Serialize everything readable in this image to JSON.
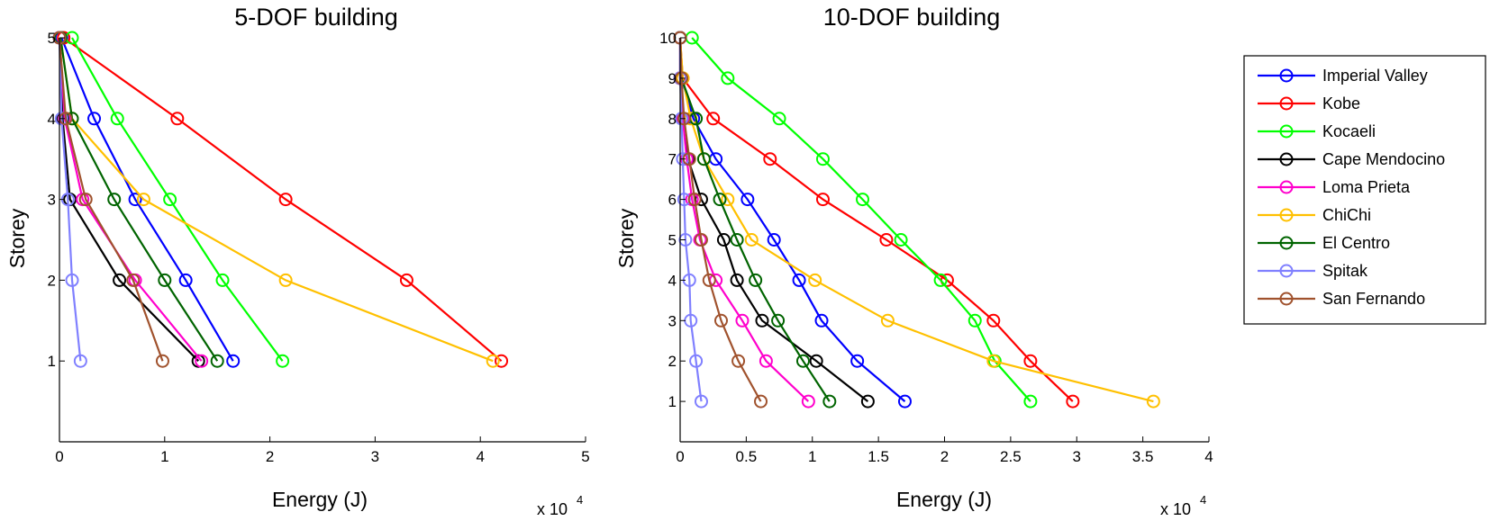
{
  "chart_data": [
    {
      "type": "line",
      "title": "5-DOF building",
      "xlabel": "Energy (J)",
      "ylabel": "Storey",
      "x_scale_label": "x 10",
      "x_scale_exponent": "4",
      "xlim": [
        0,
        5
      ],
      "ylim": [
        0,
        5
      ],
      "xticks": [
        "0",
        "1",
        "2",
        "3",
        "4",
        "5"
      ],
      "yticks": [
        "1",
        "2",
        "3",
        "4",
        "5"
      ],
      "x_unit_multiplier": 10000,
      "y": [
        1,
        2,
        3,
        4,
        5
      ],
      "series": [
        {
          "name": "Imperial Valley",
          "color": "#0000ff",
          "x": [
            1.65,
            1.2,
            0.72,
            0.33,
            0.02
          ]
        },
        {
          "name": "Kobe",
          "color": "#ff0000",
          "x": [
            4.2,
            3.3,
            2.15,
            1.12,
            0.04
          ]
        },
        {
          "name": "Kocaeli",
          "color": "#00ff00",
          "x": [
            2.12,
            1.55,
            1.05,
            0.55,
            0.12
          ]
        },
        {
          "name": "Cape Mendocino",
          "color": "#000000",
          "x": [
            1.32,
            0.57,
            0.1,
            0.03,
            0.0
          ]
        },
        {
          "name": "Loma Prieta",
          "color": "#ff00cc",
          "x": [
            1.35,
            0.72,
            0.22,
            0.05,
            0.0
          ]
        },
        {
          "name": "ChiChi",
          "color": "#ffc000",
          "x": [
            4.12,
            2.15,
            0.8,
            0.12,
            0.01
          ]
        },
        {
          "name": "El Centro",
          "color": "#006400",
          "x": [
            1.5,
            1.0,
            0.52,
            0.12,
            0.01
          ]
        },
        {
          "name": "Spitak",
          "color": "#8080ff",
          "x": [
            0.2,
            0.12,
            0.08,
            0.02,
            0.0
          ]
        },
        {
          "name": "San Fernando",
          "color": "#a0522d",
          "x": [
            0.98,
            0.7,
            0.25,
            0.06,
            0.0
          ]
        }
      ]
    },
    {
      "type": "line",
      "title": "10-DOF building",
      "xlabel": "Energy (J)",
      "ylabel": "Storey",
      "x_scale_label": "x 10",
      "x_scale_exponent": "4",
      "xlim": [
        0,
        4
      ],
      "ylim": [
        0,
        10
      ],
      "xticks": [
        "0",
        "0.5",
        "1",
        "1.5",
        "2",
        "2.5",
        "3",
        "3.5",
        "4"
      ],
      "yticks": [
        "1",
        "2",
        "3",
        "4",
        "5",
        "6",
        "7",
        "8",
        "9",
        "10"
      ],
      "x_unit_multiplier": 10000,
      "y": [
        1,
        2,
        3,
        4,
        5,
        6,
        7,
        8,
        9,
        10
      ],
      "series": [
        {
          "name": "Imperial Valley",
          "color": "#0000ff",
          "x": [
            1.7,
            1.34,
            1.07,
            0.9,
            0.71,
            0.51,
            0.27,
            0.1,
            0.01,
            0.0
          ]
        },
        {
          "name": "Kobe",
          "color": "#ff0000",
          "x": [
            2.97,
            2.65,
            2.37,
            2.02,
            1.56,
            1.08,
            0.68,
            0.25,
            0.02,
            0.0
          ]
        },
        {
          "name": "Kocaeli",
          "color": "#00ff00",
          "x": [
            2.65,
            2.38,
            2.23,
            1.97,
            1.67,
            1.38,
            1.08,
            0.75,
            0.36,
            0.09
          ]
        },
        {
          "name": "Cape Mendocino",
          "color": "#000000",
          "x": [
            1.42,
            1.03,
            0.62,
            0.43,
            0.33,
            0.16,
            0.06,
            0.02,
            0.0,
            0.0
          ]
        },
        {
          "name": "Loma Prieta",
          "color": "#ff00cc",
          "x": [
            0.97,
            0.65,
            0.47,
            0.27,
            0.15,
            0.09,
            0.05,
            0.02,
            0.0,
            0.0
          ]
        },
        {
          "name": "ChiChi",
          "color": "#ffc000",
          "x": [
            3.58,
            2.37,
            1.57,
            1.02,
            0.54,
            0.36,
            0.18,
            0.08,
            0.02,
            0.0
          ]
        },
        {
          "name": "El Centro",
          "color": "#006400",
          "x": [
            1.13,
            0.93,
            0.74,
            0.57,
            0.43,
            0.3,
            0.18,
            0.12,
            0.01,
            0.0
          ]
        },
        {
          "name": "Spitak",
          "color": "#8080ff",
          "x": [
            0.16,
            0.12,
            0.08,
            0.07,
            0.04,
            0.03,
            0.02,
            0.01,
            0.0,
            0.0
          ]
        },
        {
          "name": "San Fernando",
          "color": "#a0522d",
          "x": [
            0.61,
            0.44,
            0.31,
            0.22,
            0.16,
            0.11,
            0.07,
            0.03,
            0.01,
            0.0
          ]
        }
      ]
    }
  ],
  "legend": {
    "placement": "right",
    "entries": [
      {
        "label": "Imperial Valley",
        "color": "#0000ff"
      },
      {
        "label": "Kobe",
        "color": "#ff0000"
      },
      {
        "label": "Kocaeli",
        "color": "#00ff00"
      },
      {
        "label": "Cape Mendocino",
        "color": "#000000"
      },
      {
        "label": "Loma Prieta",
        "color": "#ff00cc"
      },
      {
        "label": "ChiChi",
        "color": "#ffc000"
      },
      {
        "label": "El Centro",
        "color": "#006400"
      },
      {
        "label": "Spitak",
        "color": "#8080ff"
      },
      {
        "label": "San Fernando",
        "color": "#a0522d"
      }
    ]
  }
}
